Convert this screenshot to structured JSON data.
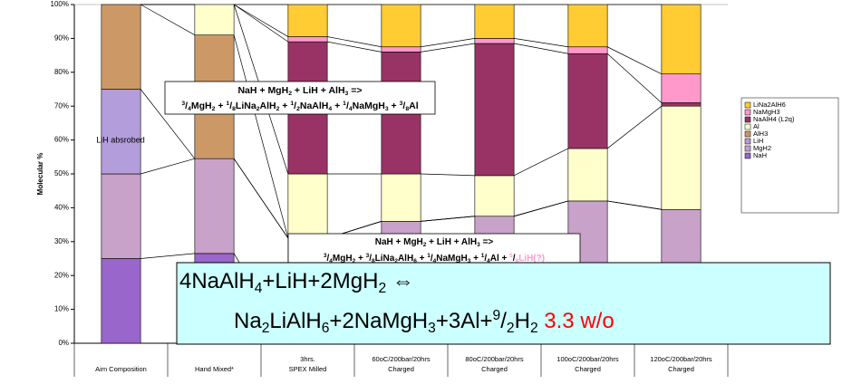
{
  "chart_data": {
    "type": "stacked_bar",
    "y_label": "Molecular %",
    "categories": [
      [
        "Aim Composition"
      ],
      [
        "Hand Mixed*"
      ],
      [
        "3hrs.",
        "SPEX Milled"
      ],
      [
        "60oC/200bar/20hrs",
        "Charged"
      ],
      [
        "80oC/200bar/20hrs",
        "Charged"
      ],
      [
        "100oC/200bar/20hrs",
        "Charged"
      ],
      [
        "120oC/200bar/20hrs",
        "Charged"
      ]
    ],
    "ylim": [
      0,
      100
    ],
    "yticks": [
      {
        "value": 0,
        "label": "0%"
      },
      {
        "value": 10,
        "label": "10%"
      },
      {
        "value": 20,
        "label": "20%"
      },
      {
        "value": 30,
        "label": "30%"
      },
      {
        "value": 40,
        "label": "40%"
      },
      {
        "value": 50,
        "label": "50%"
      },
      {
        "value": 60,
        "label": "60%"
      },
      {
        "value": 70,
        "label": "70%"
      },
      {
        "value": 80,
        "label": "80%"
      },
      {
        "value": 90,
        "label": "90%"
      },
      {
        "value": 100,
        "label": "100%"
      }
    ],
    "series": [
      {
        "name": "NaH",
        "color": "#9966cc",
        "values": [
          25,
          26.5,
          0,
          0,
          0,
          0,
          0
        ]
      },
      {
        "name": "MgH2",
        "color": "#c8a2c8",
        "values": [
          25,
          28,
          31,
          36,
          37.5,
          42,
          39.5
        ]
      },
      {
        "name": "LiH",
        "color": "#b39ddb",
        "values": [
          25,
          0,
          0,
          0,
          0,
          0,
          0
        ]
      },
      {
        "name": "AlH3",
        "color": "#cc9966",
        "values": [
          25,
          36.5,
          0,
          0,
          0,
          0,
          0
        ]
      },
      {
        "name": "Al",
        "color": "#ffffcc",
        "values": [
          0,
          9,
          19,
          14,
          12,
          15.5,
          30.5
        ]
      },
      {
        "name": "NaAlH4 (L2q)",
        "color": "#993366",
        "values": [
          0,
          0,
          39,
          36,
          39,
          28,
          1
        ]
      },
      {
        "name": "NaMgH3",
        "color": "#ff99cc",
        "values": [
          0,
          0,
          1.5,
          1.5,
          1.5,
          2,
          8.5
        ]
      },
      {
        "name": "LiNa2AlH6",
        "color": "#ffcc33",
        "values": [
          0,
          0,
          9.5,
          12.5,
          10,
          12.5,
          20.5
        ]
      }
    ],
    "annotations": [
      {
        "text": "LiH absrobed"
      },
      {
        "lines": [
          [
            {
              "t": "NaH + MgH"
            },
            {
              "t": "2",
              "s": "sub"
            },
            {
              "t": " + LiH + AlH"
            },
            {
              "t": "3",
              "s": "sub"
            },
            {
              "t": " =>"
            }
          ],
          [
            {
              "t": "3",
              "s": "sup"
            },
            {
              "t": "/"
            },
            {
              "t": "4",
              "s": "sub"
            },
            {
              "t": "MgH"
            },
            {
              "t": "2",
              "s": "sub"
            },
            {
              "t": " + "
            },
            {
              "t": "1",
              "s": "sup"
            },
            {
              "t": "/"
            },
            {
              "t": "8",
              "s": "sub"
            },
            {
              "t": "LiNa"
            },
            {
              "t": "2",
              "s": "sub"
            },
            {
              "t": "AlH"
            },
            {
              "t": "2",
              "s": "sub"
            },
            {
              "t": " + "
            },
            {
              "t": "1",
              "s": "sup"
            },
            {
              "t": "/"
            },
            {
              "t": "2",
              "s": "sub"
            },
            {
              "t": "NaAlH"
            },
            {
              "t": "4",
              "s": "sub"
            },
            {
              "t": " + "
            },
            {
              "t": "1",
              "s": "sup"
            },
            {
              "t": "/"
            },
            {
              "t": "4",
              "s": "sub"
            },
            {
              "t": "NaMgH"
            },
            {
              "t": "3",
              "s": "sub"
            },
            {
              "t": " + "
            },
            {
              "t": "3",
              "s": "sup"
            },
            {
              "t": "/"
            },
            {
              "t": "8",
              "s": "sub"
            },
            {
              "t": "Al"
            }
          ]
        ]
      },
      {
        "lines": [
          [
            {
              "t": "NaH + MgH"
            },
            {
              "t": "2",
              "s": "sub"
            },
            {
              "t": " + LiH + AlH"
            },
            {
              "t": "3",
              "s": "sub"
            },
            {
              "t": " =>"
            }
          ],
          [
            {
              "t": "3",
              "s": "sup"
            },
            {
              "t": "/"
            },
            {
              "t": "4",
              "s": "sub"
            },
            {
              "t": "MgH"
            },
            {
              "t": "2",
              "s": "sub"
            },
            {
              "t": " + "
            },
            {
              "t": "3",
              "s": "sup"
            },
            {
              "t": "/"
            },
            {
              "t": "8",
              "s": "sub"
            },
            {
              "t": "LiNa"
            },
            {
              "t": "2",
              "s": "sub"
            },
            {
              "t": "AlH"
            },
            {
              "t": "6",
              "s": "sub"
            },
            {
              "t": " + "
            },
            {
              "t": "1",
              "s": "sup"
            },
            {
              "t": "/"
            },
            {
              "t": "4",
              "s": "sub"
            },
            {
              "t": "NaMgH"
            },
            {
              "t": "3",
              "s": "sub"
            },
            {
              "t": " + "
            },
            {
              "t": "1",
              "s": "sup"
            },
            {
              "t": "/"
            },
            {
              "t": "4",
              "s": "sub"
            },
            {
              "t": "Al + "
            },
            {
              "t": "5",
              "s": "sup",
              "color": "#ff99cc"
            },
            {
              "t": "/"
            },
            {
              "t": "8",
              "s": "sub",
              "color": "#ff99cc"
            },
            {
              "t": "LiH(?)",
              "color": "#ff99cc"
            }
          ]
        ]
      },
      {
        "lines": [
          [
            {
              "t": "4NaAlH"
            },
            {
              "t": "4",
              "s": "sub"
            },
            {
              "t": "+LiH+2MgH"
            },
            {
              "t": "2",
              "s": "sub"
            },
            {
              "t": " ⇔"
            }
          ],
          [
            {
              "t": "Na"
            },
            {
              "t": "2",
              "s": "sub"
            },
            {
              "t": "LiAlH"
            },
            {
              "t": "6",
              "s": "sub"
            },
            {
              "t": "+2NaMgH"
            },
            {
              "t": "3",
              "s": "sub"
            },
            {
              "t": "+3Al+"
            },
            {
              "t": "9",
              "s": "sup"
            },
            {
              "t": "/"
            },
            {
              "t": "2",
              "s": "sub"
            },
            {
              "t": "H"
            },
            {
              "t": "2",
              "s": "sub"
            },
            {
              "t": " 3.3 w/o",
              "color": "#ff0000"
            }
          ]
        ]
      }
    ]
  }
}
